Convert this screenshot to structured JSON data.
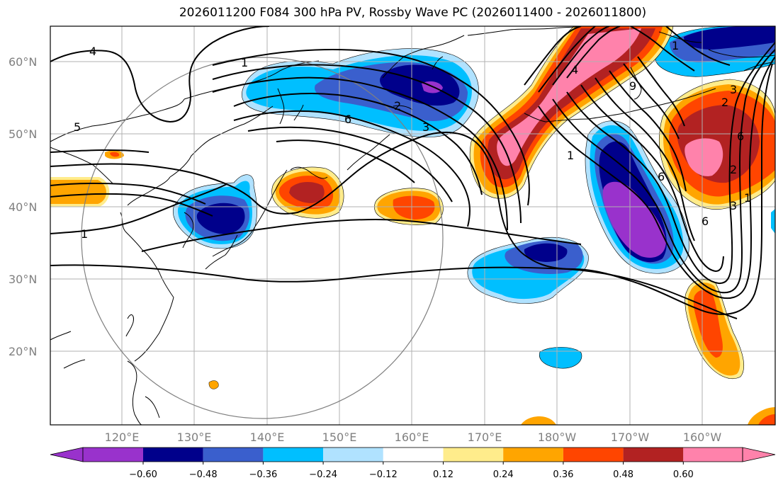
{
  "title": "2026011200 F084 300 hPa PV, Rossby Wave PC (2026011400 - 2026011800)",
  "axes": {
    "lat_labels": [
      "60°N",
      "50°N",
      "40°N",
      "30°N",
      "20°N"
    ],
    "lon_labels": [
      "120°E",
      "130°E",
      "140°E",
      "150°E",
      "160°E",
      "170°E",
      "180°W",
      "170°W",
      "160°W"
    ]
  },
  "colorbar": {
    "ticks": [
      "−0.60",
      "−0.48",
      "−0.36",
      "−0.24",
      "−0.12",
      "0.12",
      "0.24",
      "0.36",
      "0.48",
      "0.60"
    ],
    "colors": [
      "#9932cc",
      "#00008b",
      "#3a5fcd",
      "#00bfff",
      "#b0e2ff",
      "#ffffff",
      "#ffec8b",
      "#ffa500",
      "#ff4500",
      "#b22222",
      "#ff82ab"
    ]
  },
  "contour_labels": [
    "4",
    "1",
    "5",
    "6",
    "2",
    "3",
    "1",
    "1",
    "4",
    "6",
    "2",
    "3",
    "1",
    "6",
    "6",
    "2",
    "3",
    "1",
    "9"
  ]
}
